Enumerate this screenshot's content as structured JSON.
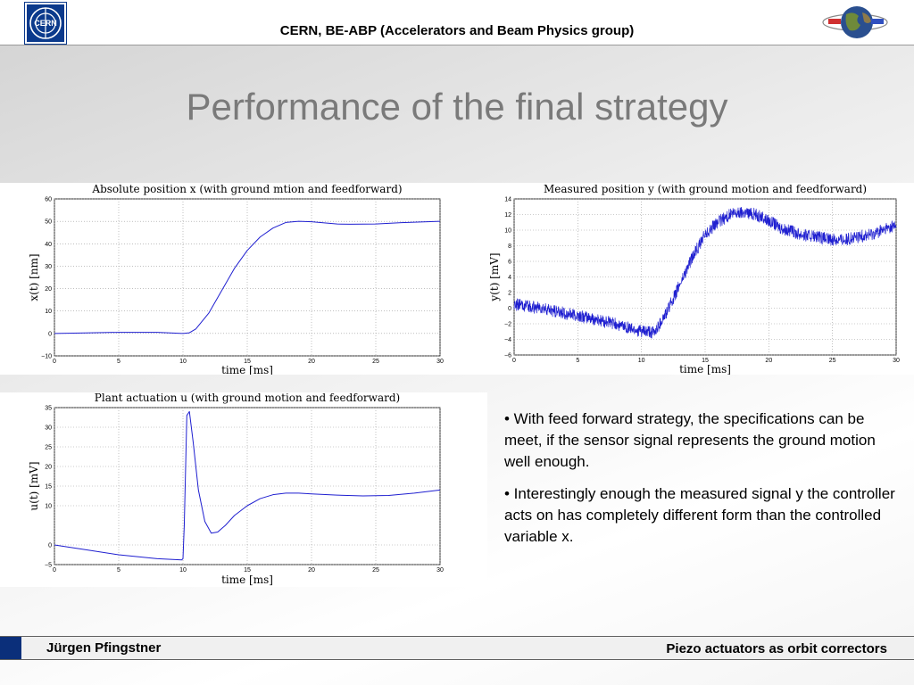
{
  "header": {
    "text": "CERN, BE-ABP (Accelerators and Beam Physics group)",
    "logo_text": "CERN"
  },
  "slide": {
    "title": "Performance of the final strategy"
  },
  "colors": {
    "series": "#1f1fd0",
    "header_blue": "#0b3a8c"
  },
  "chart_data": [
    {
      "type": "line",
      "title": "Absolute position x (with ground mtion and feedforward)",
      "xlabel": "time [ms]",
      "ylabel": "x(t) [nm]",
      "xlim": [
        0,
        30
      ],
      "ylim": [
        -10,
        60
      ],
      "xticks": [
        0,
        5,
        10,
        15,
        20,
        25,
        30
      ],
      "yticks": [
        -10,
        0,
        10,
        20,
        30,
        40,
        50,
        60
      ],
      "grid": true,
      "noise": 0,
      "series": [
        {
          "x": [
            0,
            2,
            5,
            8,
            10,
            10.5,
            11,
            12,
            13,
            14,
            15,
            16,
            17,
            18,
            19,
            20,
            21,
            22,
            23,
            25,
            27,
            30
          ],
          "y": [
            0,
            0.2,
            0.5,
            0.5,
            0,
            0.3,
            2,
            9,
            19,
            29,
            37,
            43,
            47,
            49.5,
            50,
            49.8,
            49.3,
            48.8,
            48.7,
            48.8,
            49.4,
            50
          ]
        }
      ]
    },
    {
      "type": "line",
      "title": "Measured position y (with ground motion and feedforward)",
      "xlabel": "time [ms]",
      "ylabel": "y(t) [mV]",
      "xlim": [
        0,
        30
      ],
      "ylim": [
        -6,
        14
      ],
      "xticks": [
        0,
        5,
        10,
        15,
        20,
        25,
        30
      ],
      "yticks": [
        -6,
        -4,
        -2,
        0,
        2,
        4,
        6,
        8,
        10,
        12,
        14
      ],
      "grid": true,
      "noise": 0.8,
      "series": [
        {
          "x": [
            0,
            2,
            5,
            8,
            10,
            11,
            12,
            13,
            14,
            15,
            16,
            17,
            18,
            19,
            20,
            21,
            22,
            23,
            24,
            25,
            26,
            27,
            28,
            29,
            30
          ],
          "y": [
            0.5,
            0,
            -1,
            -2,
            -3,
            -3.2,
            -0.5,
            3,
            6.5,
            9.5,
            11,
            12,
            12.3,
            12,
            11.2,
            10.3,
            9.7,
            9.3,
            9,
            8.8,
            8.8,
            9.1,
            9.5,
            10,
            10.6
          ]
        }
      ]
    },
    {
      "type": "line",
      "title": "Plant actuation u (with ground motion and feedforward)",
      "xlabel": "time [ms]",
      "ylabel": "u(t) [mV]",
      "xlim": [
        0,
        30
      ],
      "ylim": [
        -5,
        35
      ],
      "xticks": [
        0,
        5,
        10,
        15,
        20,
        25,
        30
      ],
      "yticks": [
        -5,
        0,
        10,
        15,
        20,
        25,
        30,
        35
      ],
      "grid": true,
      "noise": 0,
      "series": [
        {
          "x": [
            0,
            2,
            5,
            8,
            9.9,
            10,
            10.1,
            10.3,
            10.5,
            10.8,
            11.2,
            11.7,
            12.2,
            12.7,
            13.3,
            14,
            15,
            16,
            17,
            18,
            19,
            20,
            22,
            24,
            26,
            28,
            30
          ],
          "y": [
            0,
            -1,
            -2.5,
            -3.5,
            -3.8,
            -3.5,
            5,
            33,
            34,
            26,
            14,
            6,
            3,
            3.3,
            5,
            7.5,
            10,
            11.8,
            12.8,
            13.2,
            13.2,
            13,
            12.7,
            12.5,
            12.6,
            13.2,
            14
          ]
        }
      ]
    }
  ],
  "bullets": [
    "• With feed forward strategy, the specifications can be meet, if the sensor signal represents the ground motion well enough.",
    "• Interestingly enough the measured signal y the controller acts on has completely different form than the controlled variable x."
  ],
  "footer": {
    "left": "Jürgen Pfingstner",
    "right": "Piezo actuators as orbit correctors"
  }
}
